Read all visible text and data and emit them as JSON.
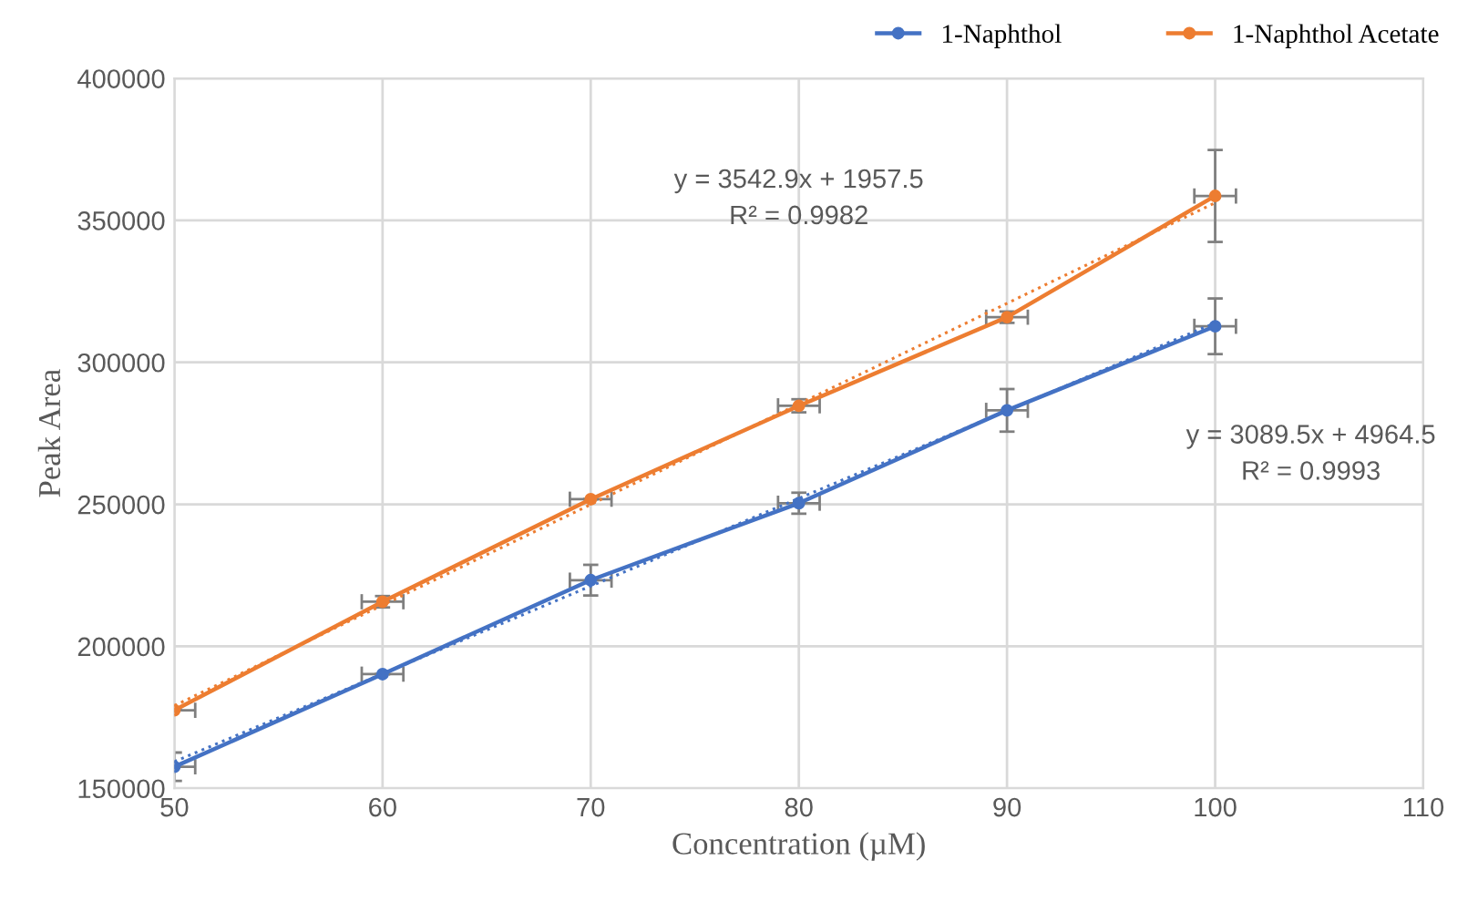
{
  "chart_data": {
    "type": "line",
    "xlabel": "Concentration (µM)",
    "ylabel": "Peak Area",
    "xlim": [
      50,
      110
    ],
    "xticks": [
      50,
      60,
      70,
      80,
      90,
      100,
      110
    ],
    "ylim": [
      150000,
      400000
    ],
    "yticks": [
      150000,
      200000,
      250000,
      300000,
      350000,
      400000
    ],
    "grid": true,
    "legend": "top right",
    "marker": "circle",
    "line_style": "solid",
    "series": [
      {
        "name": "1-Naphthol",
        "color": "#4472c4",
        "x": [
          50,
          60,
          70,
          80,
          90,
          100
        ],
        "values": [
          157600,
          190200,
          223300,
          250400,
          283100,
          312700
        ],
        "errors": [
          5000,
          null,
          5400,
          3700,
          7500,
          9800
        ],
        "xerrors": [
          1,
          1,
          1,
          1,
          1,
          1
        ]
      },
      {
        "name": "1-Naphthol Acetate",
        "color": "#ed7d31",
        "x": [
          50,
          60,
          70,
          80,
          90,
          100
        ],
        "values": [
          177500,
          215700,
          251800,
          284700,
          315900,
          358600
        ],
        "errors": [
          null,
          2000,
          null,
          2300,
          2000,
          16200
        ],
        "xerrors": [
          1,
          1,
          1,
          1,
          1,
          1
        ]
      },
      {
        "type": "line",
        "color": "#4472c4",
        "line_style": "dotted",
        "marker": "none",
        "x": [
          50,
          100
        ],
        "values": [
          159400,
          313900
        ]
      },
      {
        "type": "line",
        "color": "#ed7d31",
        "line_style": "dotted",
        "marker": "none",
        "x": [
          50,
          100
        ],
        "values": [
          179100,
          356200
        ]
      }
    ],
    "annotations": [
      "y = 3542.9x + 1957.5\nR² = 0.9982",
      "y = 3089.5x + 4964.5\nR² = 0.9993"
    ]
  }
}
